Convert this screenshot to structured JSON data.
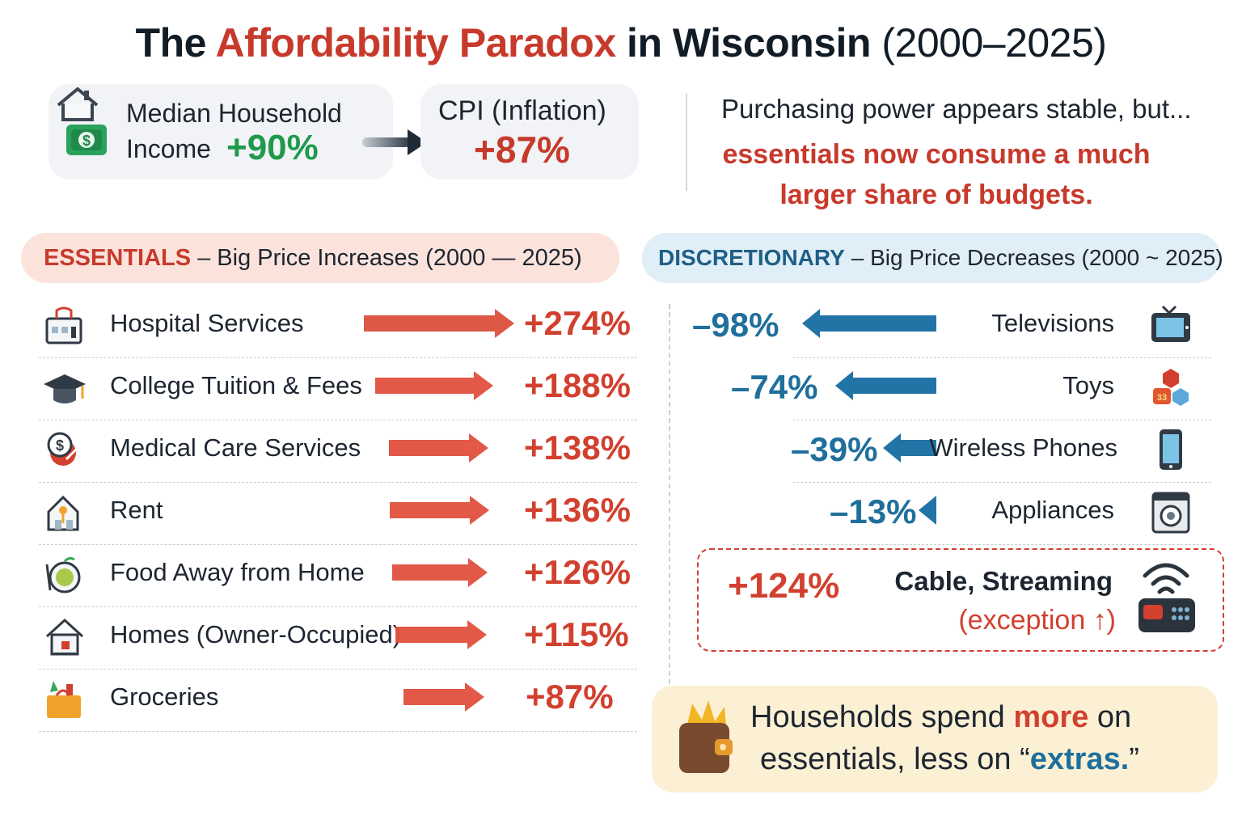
{
  "title": {
    "prefix": "The",
    "highlight": "Affordability Paradox",
    "mid": "in Wisconsin",
    "years": "(2000–2025)"
  },
  "income": {
    "label_line1": "Median Household",
    "label_line2": "Income",
    "value": "+90%"
  },
  "cpi": {
    "label": "CPI (Inflation)",
    "value": "+87%"
  },
  "note": {
    "line1": "Purchasing power appears stable, but...",
    "line2": "essentials now consume a much",
    "line3": "larger share of budgets."
  },
  "essentials_header": {
    "strong": "ESSENTIALS",
    "rest": "– Big Price Increases (2000 — 2025)"
  },
  "discretionary_header": {
    "strong": "DISCRETIONARY",
    "rest": "– Big Price Decreases (2000 ~ 2025)"
  },
  "exception": {
    "value": "+124%",
    "label_line1": "Cable, Streaming",
    "label_line2": "(exception ↑)"
  },
  "summary": {
    "l1_a": "Households spend",
    "l1_more": "more",
    "l1_b": "on",
    "l2_a": "essentials, less on “",
    "l2_extras": "extras.",
    "l2_b": "”"
  },
  "colors": {
    "red": "#d2402f",
    "blue": "#1f6f9c",
    "green": "#1f9a4c"
  },
  "chart_data": [
    {
      "type": "bar",
      "title": "ESSENTIALS – Big Price Increases (2000 — 2025)",
      "unit": "%",
      "categories": [
        "Hospital Services",
        "College Tuition & Fees",
        "Medical Care Services",
        "Rent",
        "Food Away from Home",
        "Homes (Owner-Occupied)",
        "Groceries"
      ],
      "values": [
        274,
        188,
        138,
        136,
        126,
        115,
        87
      ],
      "labels": [
        "+274%",
        "+188%",
        "+138%",
        "+136%",
        "+126%",
        "+115%",
        "+87%"
      ],
      "icons": [
        "hospital-icon",
        "graduation-cap-icon",
        "medical-icon",
        "house-icon",
        "food-icon",
        "home-icon",
        "groceries-icon"
      ]
    },
    {
      "type": "bar",
      "title": "DISCRETIONARY – Big Price Decreases (2000 ~ 2025)",
      "unit": "%",
      "categories": [
        "Televisions",
        "Toys",
        "Wireless Phones",
        "Appliances"
      ],
      "values": [
        -98,
        -74,
        -39,
        -13
      ],
      "labels": [
        "–98%",
        "–74%",
        "–39%",
        "–13%"
      ],
      "icons": [
        "television-icon",
        "toys-icon",
        "phone-icon",
        "appliance-icon"
      ]
    }
  ]
}
